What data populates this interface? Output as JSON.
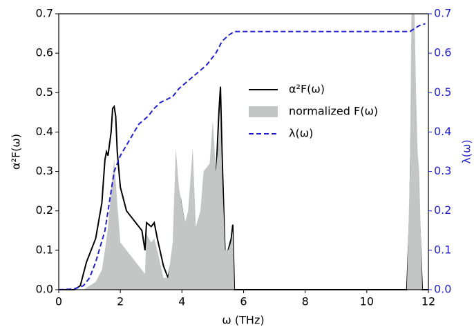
{
  "chart_data": {
    "type": "line",
    "xlabel": "ω (THz)",
    "ylabel": "α²F(ω)",
    "y2label": "λ(ω)",
    "xlim": [
      0,
      12
    ],
    "xticks": [
      0,
      2,
      4,
      6,
      8,
      10,
      12
    ],
    "ylim": [
      0,
      0.7
    ],
    "yticks": [
      {
        "value": 0,
        "label": "0.0"
      },
      0.1,
      0.2,
      0.3,
      0.4,
      0.5,
      0.6,
      0.7
    ],
    "y2lim": [
      0,
      0.7
    ],
    "y2ticks": [
      {
        "value": 0,
        "label": "0.0"
      },
      0.1,
      0.2,
      0.3,
      0.4,
      0.5,
      0.6,
      0.7
    ],
    "y2color": "#1f1fd0",
    "series": [
      {
        "name": "α²F(ω)",
        "kind": "line",
        "color": "#000000",
        "x": [
          0,
          0.5,
          0.7,
          0.8,
          0.9,
          1.0,
          1.2,
          1.4,
          1.5,
          1.55,
          1.6,
          1.7,
          1.75,
          1.8,
          1.85,
          1.9,
          2.0,
          2.2,
          2.5,
          2.7,
          2.8,
          2.85,
          3.0,
          3.1,
          3.2,
          3.4,
          3.55,
          3.7,
          3.85,
          3.95,
          4.1,
          4.2,
          4.3,
          4.35,
          4.45,
          4.6,
          4.7,
          4.9,
          5.0,
          5.1,
          5.2,
          5.25,
          5.3,
          5.4,
          5.5,
          5.6,
          5.65,
          5.7,
          6,
          11.3,
          11.4,
          11.45,
          11.5,
          11.55,
          11.6,
          11.65,
          11.7,
          11.8,
          12
        ],
        "values": [
          0,
          0,
          0.01,
          0.04,
          0.07,
          0.09,
          0.13,
          0.22,
          0.33,
          0.35,
          0.34,
          0.4,
          0.46,
          0.465,
          0.44,
          0.35,
          0.26,
          0.2,
          0.17,
          0.15,
          0.1,
          0.17,
          0.16,
          0.17,
          0.13,
          0.06,
          0.03,
          0.09,
          0.25,
          0.23,
          0.16,
          0.12,
          0.17,
          0.22,
          0.12,
          0.15,
          0.21,
          0.24,
          0.29,
          0.28,
          0.45,
          0.515,
          0.35,
          0.09,
          0.1,
          0.13,
          0.165,
          0,
          0,
          0,
          0.2,
          0.45,
          0.69,
          0.17,
          0.42,
          0.22,
          0.2,
          0,
          0
        ]
      },
      {
        "name": "normalized F(ω)",
        "kind": "area",
        "color": "#c4c6c6",
        "x": [
          0,
          0.8,
          1.0,
          1.2,
          1.4,
          1.5,
          1.6,
          1.7,
          1.75,
          1.8,
          1.9,
          2.0,
          2.2,
          2.5,
          2.7,
          2.8,
          2.85,
          3.0,
          3.1,
          3.2,
          3.4,
          3.55,
          3.7,
          3.8,
          3.9,
          4.1,
          4.2,
          4.35,
          4.45,
          4.6,
          4.7,
          4.9,
          5.0,
          5.1,
          5.2,
          5.25,
          5.3,
          5.4,
          5.5,
          5.6,
          5.65,
          5.7,
          11.3,
          11.4,
          11.45,
          11.5,
          11.55,
          11.6,
          11.65,
          11.7,
          11.8,
          12
        ],
        "values": [
          0,
          0,
          0.01,
          0.02,
          0.05,
          0.1,
          0.16,
          0.25,
          0.29,
          0.33,
          0.22,
          0.12,
          0.1,
          0.07,
          0.05,
          0.04,
          0.14,
          0.12,
          0.13,
          0.1,
          0.03,
          0.03,
          0.12,
          0.36,
          0.26,
          0.17,
          0.2,
          0.36,
          0.16,
          0.2,
          0.3,
          0.32,
          0.43,
          0.3,
          0.38,
          0.45,
          0.3,
          0.1,
          0.1,
          0.12,
          0.15,
          0,
          0,
          0.3,
          0.7,
          0.7,
          0.7,
          0.5,
          0.35,
          0.3,
          0,
          0
        ]
      },
      {
        "name": "λ(ω)",
        "kind": "dashed",
        "axis": "y2",
        "color": "#1f1fd0",
        "x": [
          0,
          0.5,
          0.8,
          1.0,
          1.2,
          1.5,
          1.7,
          1.8,
          2.0,
          2.3,
          2.6,
          2.9,
          3.1,
          3.3,
          3.7,
          3.9,
          4.2,
          4.5,
          4.8,
          5.1,
          5.3,
          5.5,
          5.7,
          6,
          11.4,
          11.5,
          11.7,
          11.9
        ],
        "values": [
          0,
          0.002,
          0.01,
          0.03,
          0.07,
          0.15,
          0.25,
          0.3,
          0.34,
          0.38,
          0.42,
          0.44,
          0.46,
          0.475,
          0.49,
          0.51,
          0.53,
          0.55,
          0.57,
          0.6,
          0.63,
          0.645,
          0.655,
          0.655,
          0.655,
          0.66,
          0.67,
          0.675
        ]
      }
    ]
  }
}
